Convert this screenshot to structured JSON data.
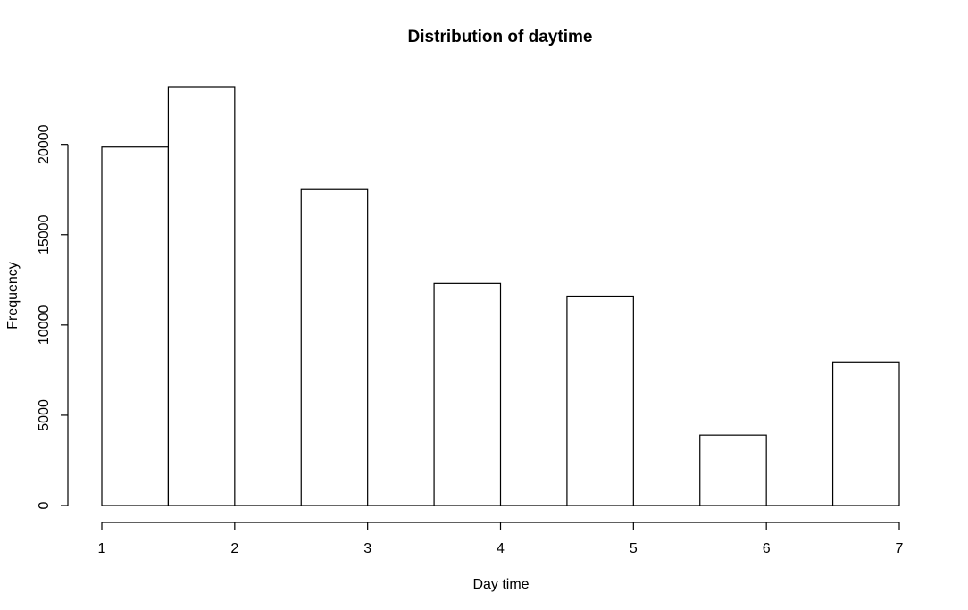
{
  "chart_data": {
    "type": "bar",
    "title": "Distribution of daytime",
    "xlabel": "Day time",
    "ylabel": "Frequency",
    "bins": [
      {
        "start": 1.0,
        "end": 1.5,
        "count": 19850
      },
      {
        "start": 1.5,
        "end": 2.0,
        "count": 23200
      },
      {
        "start": 2.0,
        "end": 2.5,
        "count": 0
      },
      {
        "start": 2.5,
        "end": 3.0,
        "count": 17500
      },
      {
        "start": 3.0,
        "end": 3.5,
        "count": 0
      },
      {
        "start": 3.5,
        "end": 4.0,
        "count": 12300
      },
      {
        "start": 4.0,
        "end": 4.5,
        "count": 0
      },
      {
        "start": 4.5,
        "end": 5.0,
        "count": 11600
      },
      {
        "start": 5.0,
        "end": 5.5,
        "count": 0
      },
      {
        "start": 5.5,
        "end": 6.0,
        "count": 3900
      },
      {
        "start": 6.0,
        "end": 6.5,
        "count": 0
      },
      {
        "start": 6.5,
        "end": 7.0,
        "count": 7950
      }
    ],
    "x_ticks": [
      "1",
      "2",
      "3",
      "4",
      "5",
      "6",
      "7"
    ],
    "y_ticks": [
      "0",
      "5000",
      "10000",
      "15000",
      "20000"
    ],
    "xlim": [
      1,
      7
    ],
    "ylim": [
      0,
      23200
    ],
    "grid": false,
    "legend": "none"
  }
}
